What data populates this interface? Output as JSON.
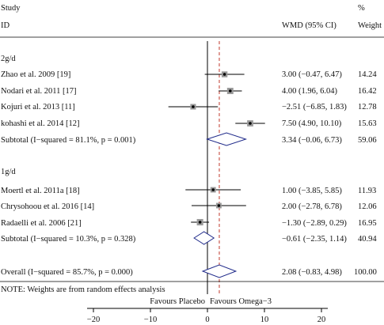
{
  "chart_data": {
    "type": "forest",
    "header": {
      "study_top": "Study",
      "study_bottom": "ID",
      "effect_col": "WMD (95% CI)",
      "pct_top": "%",
      "weight_col": "Weight"
    },
    "x_ticks": [
      -20,
      -10,
      0,
      10,
      20
    ],
    "null_line": 0,
    "overall_line": 2.08,
    "x_left_label": "Favours Placebo",
    "x_right_label": "Favours Omega−3",
    "groups": [
      {
        "label": "2g/d",
        "studies": [
          {
            "name": "Zhao et al. 2009 [19]",
            "est": 3.0,
            "lo": -0.47,
            "hi": 6.47,
            "ci_text": "3.00 (−0.47, 6.47)",
            "weight": "14.24"
          },
          {
            "name": "Nodari et al. 2011 [17]",
            "est": 4.0,
            "lo": 1.96,
            "hi": 6.04,
            "ci_text": "4.00 (1.96, 6.04)",
            "weight": "16.42"
          },
          {
            "name": "Kojuri et al. 2013 [11]",
            "est": -2.51,
            "lo": -6.85,
            "hi": 1.83,
            "ci_text": "−2.51 (−6.85, 1.83)",
            "weight": "12.78"
          },
          {
            "name": "kohashi et al. 2014 [12]",
            "est": 7.5,
            "lo": 4.9,
            "hi": 10.1,
            "ci_text": "7.50 (4.90, 10.10)",
            "weight": "15.63"
          }
        ],
        "subtotal": {
          "name": "Subtotal  (I−squared = 81.1%, p = 0.001)",
          "est": 3.34,
          "lo": -0.06,
          "hi": 6.73,
          "ci_text": "3.34 (−0.06, 6.73)",
          "weight": "59.06"
        }
      },
      {
        "label": "1g/d",
        "studies": [
          {
            "name": "Moertl et al. 2011a [18]",
            "est": 1.0,
            "lo": -3.85,
            "hi": 5.85,
            "ci_text": "1.00 (−3.85, 5.85)",
            "weight": "11.93"
          },
          {
            "name": "Chrysohoou et al. 2016 [14]",
            "est": 2.0,
            "lo": -2.78,
            "hi": 6.78,
            "ci_text": "2.00 (−2.78, 6.78)",
            "weight": "12.06"
          },
          {
            "name": "Radaelli et al. 2006 [21]",
            "est": -1.3,
            "lo": -2.89,
            "hi": 0.29,
            "ci_text": "−1.30 (−2.89, 0.29)",
            "weight": "16.95"
          }
        ],
        "subtotal": {
          "name": "Subtotal  (I−squared = 10.3%, p = 0.328)",
          "est": -0.61,
          "lo": -2.35,
          "hi": 1.14,
          "ci_text": "−0.61 (−2.35, 1.14)",
          "weight": "40.94"
        }
      }
    ],
    "overall": {
      "name": "Overall  (I−squared = 85.7%, p = 0.000)",
      "est": 2.08,
      "lo": -0.83,
      "hi": 4.98,
      "ci_text": "2.08 (−0.83, 4.98)",
      "weight": "100.00"
    },
    "note": "NOTE: Weights are from random effects analysis",
    "colors": {
      "text": "#111111",
      "diamond": "#1f2a8a",
      "overall_line": "#c0392b",
      "axis": "#000000"
    }
  }
}
